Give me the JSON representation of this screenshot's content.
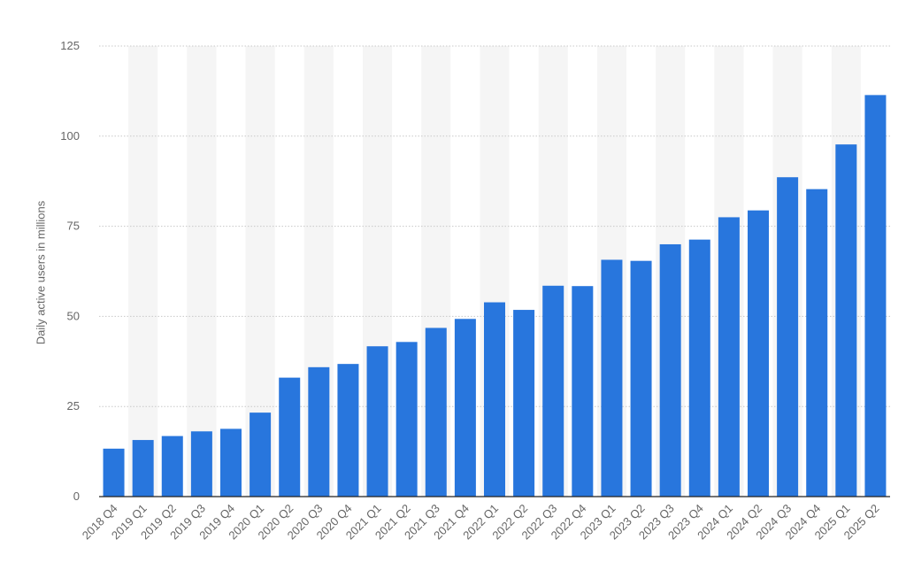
{
  "chart_data": {
    "type": "bar",
    "title": "",
    "xlabel": "",
    "ylabel": "Daily active users in millions",
    "ylim": [
      0,
      125
    ],
    "yticks": [
      0,
      25,
      50,
      75,
      100,
      125
    ],
    "grid": true,
    "categories": [
      "2018 Q4",
      "2019 Q1",
      "2019 Q2",
      "2019 Q3",
      "2019 Q4",
      "2020 Q1",
      "2020 Q2",
      "2020 Q3",
      "2020 Q4",
      "2021 Q1",
      "2021 Q2",
      "2021 Q3",
      "2021 Q4",
      "2022 Q1",
      "2022 Q2",
      "2022 Q3",
      "2022 Q4",
      "2023 Q1",
      "2023 Q2",
      "2023 Q3",
      "2023 Q4",
      "2024 Q1",
      "2024 Q2",
      "2024 Q3",
      "2024 Q4",
      "2025 Q1",
      "2025 Q2"
    ],
    "values": [
      13.3,
      15.7,
      16.8,
      18.1,
      18.8,
      23.3,
      33.0,
      35.9,
      36.8,
      41.7,
      42.9,
      46.8,
      49.3,
      53.9,
      51.8,
      58.5,
      58.4,
      65.7,
      65.4,
      70.0,
      71.3,
      77.5,
      79.4,
      88.6,
      85.3,
      97.7,
      111.4
    ],
    "colors": {
      "bar": "#2876dd",
      "band": "#f5f5f5",
      "grid": "#c8c8c8",
      "axis": "#222222",
      "text": "#666666"
    }
  }
}
